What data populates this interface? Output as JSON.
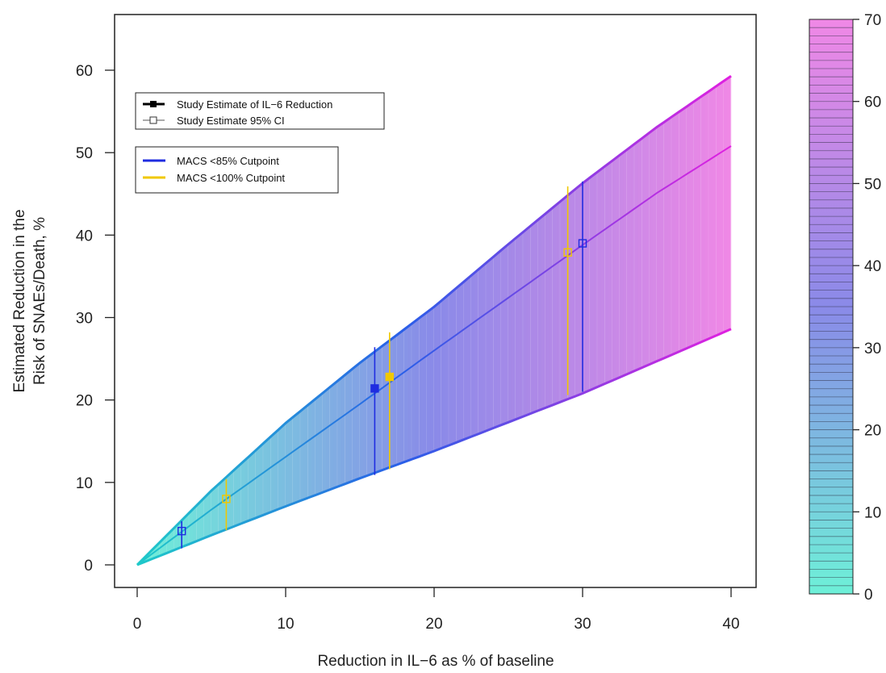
{
  "chart_data": {
    "type": "line",
    "xlabel": "Reduction in IL−6 as % of baseline",
    "ylabel_line1": "Estimated Reduction in the",
    "ylabel_line2": "Risk of SNAEs/Death, %",
    "xlim": [
      0,
      40
    ],
    "ylim": [
      0,
      60
    ],
    "xticks": [
      "0",
      "10",
      "20",
      "30",
      "40"
    ],
    "yticks": [
      "0",
      "10",
      "20",
      "30",
      "40",
      "50",
      "60"
    ],
    "grid": false,
    "legend1": [
      {
        "label": "Study Estimate of IL−6 Reduction",
        "marker": "filled-square"
      },
      {
        "label": "Study Estimate 95% CI",
        "marker": "open-square"
      }
    ],
    "legend2": [
      {
        "label": "MACS <85% Cutpoint",
        "color": "#1f2ce0"
      },
      {
        "label": "MACS <100% Cutpoint",
        "color": "#f0c800"
      }
    ],
    "band": {
      "x": [
        0,
        5,
        10,
        15,
        20,
        25,
        30,
        35,
        40
      ],
      "upper": [
        0,
        9,
        17.2,
        24.5,
        31.3,
        38.9,
        46.3,
        53.1,
        59.3
      ],
      "middle": [
        0,
        6.7,
        13.1,
        19.5,
        26.0,
        32.4,
        38.8,
        45.1,
        50.8
      ],
      "lower": [
        0,
        3.6,
        7.1,
        10.5,
        13.8,
        17.3,
        20.8,
        24.7,
        28.6
      ]
    },
    "markers": [
      {
        "series": "MACS <85% Cutpoint",
        "x": 3,
        "y": 4.1,
        "ylow": 2,
        "yhigh": 5.3,
        "marker": "open-square"
      },
      {
        "series": "MACS <85% Cutpoint",
        "x": 16,
        "y": 21.4,
        "ylow": 10.9,
        "yhigh": 26.4,
        "marker": "filled-square"
      },
      {
        "series": "MACS <85% Cutpoint",
        "x": 30,
        "y": 39,
        "ylow": 21,
        "yhigh": 46.5,
        "marker": "open-square"
      },
      {
        "series": "MACS <100% Cutpoint",
        "x": 6,
        "y": 8,
        "ylow": 4.2,
        "yhigh": 10.4,
        "marker": "open-square"
      },
      {
        "series": "MACS <100% Cutpoint",
        "x": 17,
        "y": 22.8,
        "ylow": 11.6,
        "yhigh": 28.2,
        "marker": "filled-square"
      },
      {
        "series": "MACS <100% Cutpoint",
        "x": 29,
        "y": 37.9,
        "ylow": 20.6,
        "yhigh": 45.9,
        "marker": "open-square"
      }
    ],
    "colorbar": {
      "range": [
        0,
        70
      ],
      "ticks": [
        "0",
        "10",
        "20",
        "30",
        "40",
        "50",
        "60",
        "70"
      ],
      "color_low": "#6ef0d8",
      "color_mid": "#8a8ae8",
      "color_high": "#f088e6"
    },
    "line_colors": {
      "start": "#1ec9c9",
      "mid": "#2a5ee8",
      "end": "#e020e0"
    }
  }
}
